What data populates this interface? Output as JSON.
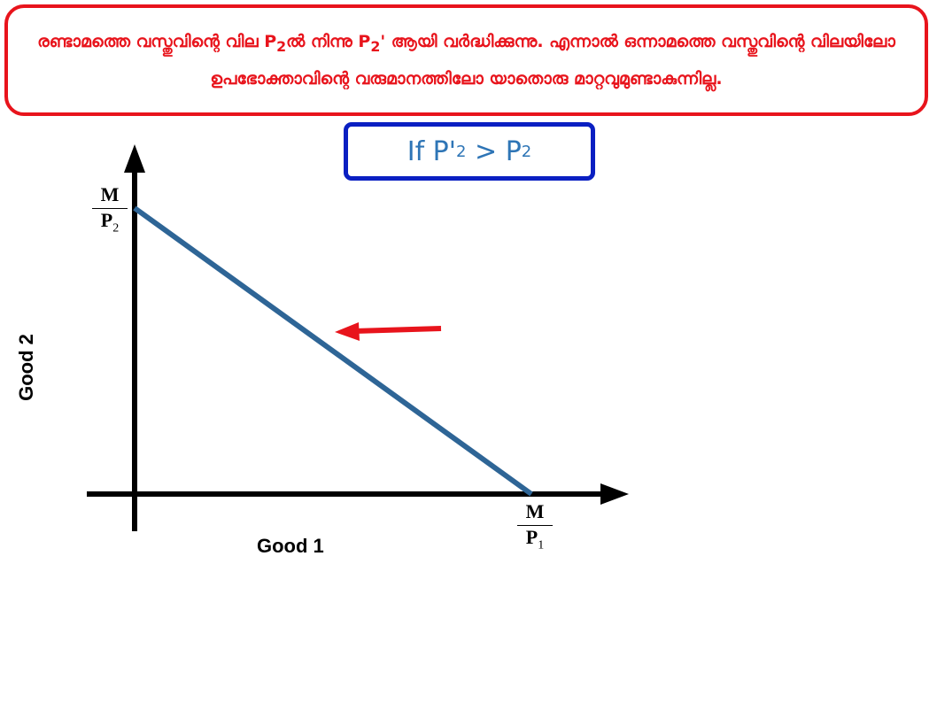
{
  "banner": {
    "parts": [
      "രണ്ടാമത്തെ വസ്തുവിന്റെ വില P",
      "2",
      "ൽ നിന്നു P",
      "2",
      "'  ആയി വർദ്ധിക്കുന്നു. എന്നാൽ ഒന്നാമത്തെ വസ്തുവിന്റെ വിലയിലോ ഉപഭോക്താവിന്റെ വരുമാനത്തിലോ യാതൊരു മാറ്റവുമുണ്ടാകുന്നില്ല."
    ]
  },
  "condition": {
    "parts": [
      "If P'",
      "2",
      " > P",
      "2"
    ]
  },
  "diagram": {
    "y_axis_label": "Good 2",
    "x_axis_label": "Good 1",
    "y_intercept": {
      "numerator": "M",
      "denominator": "P",
      "subscript": "2"
    },
    "x_intercept": {
      "numerator": "M",
      "denominator": "P",
      "subscript": "1"
    }
  }
}
